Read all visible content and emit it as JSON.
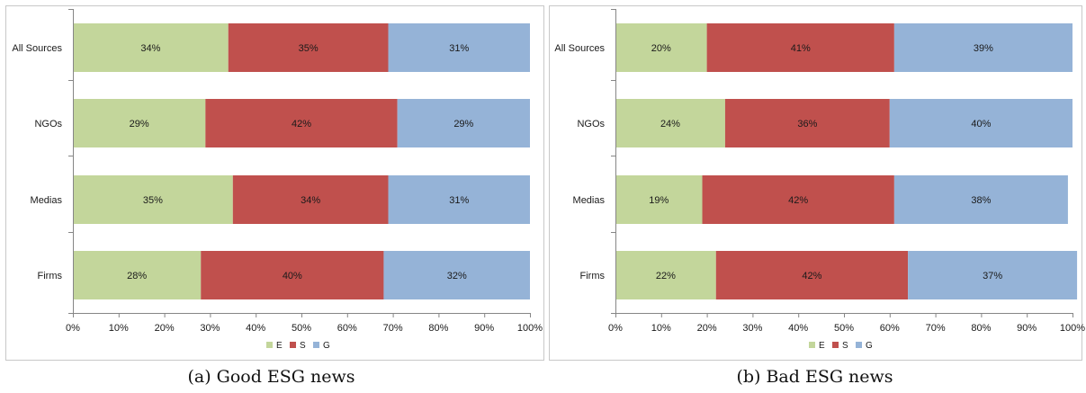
{
  "chart_data": [
    {
      "type": "bar",
      "orientation": "horizontal",
      "stacked": true,
      "categories": [
        "All Sources",
        "NGOs",
        "Medias",
        "Firms"
      ],
      "series": [
        {
          "name": "E",
          "values": [
            34,
            29,
            35,
            28
          ],
          "labels": [
            "34%",
            "29%",
            "35%",
            "28%"
          ],
          "color": "#c3d69b"
        },
        {
          "name": "S",
          "values": [
            35,
            42,
            34,
            40
          ],
          "labels": [
            "35%",
            "42%",
            "34%",
            "40%"
          ],
          "color": "#c0504d"
        },
        {
          "name": "G",
          "values": [
            31,
            29,
            31,
            32
          ],
          "labels": [
            "31%",
            "29%",
            "31%",
            "32%"
          ],
          "color": "#95b3d7"
        }
      ],
      "xticks": [
        "0%",
        "10%",
        "20%",
        "30%",
        "40%",
        "50%",
        "60%",
        "70%",
        "80%",
        "90%",
        "100%"
      ],
      "xlim": [
        0,
        100
      ],
      "grid": false,
      "legend": "bottom",
      "caption": "(a) Good ESG news"
    },
    {
      "type": "bar",
      "orientation": "horizontal",
      "stacked": true,
      "categories": [
        "All Sources",
        "NGOs",
        "Medias",
        "Firms"
      ],
      "series": [
        {
          "name": "E",
          "values": [
            20,
            24,
            19,
            22
          ],
          "labels": [
            "20%",
            "24%",
            "19%",
            "22%"
          ],
          "color": "#c3d69b"
        },
        {
          "name": "S",
          "values": [
            41,
            36,
            42,
            42
          ],
          "labels": [
            "41%",
            "36%",
            "42%",
            "42%"
          ],
          "color": "#c0504d"
        },
        {
          "name": "G",
          "values": [
            39,
            40,
            38,
            37
          ],
          "labels": [
            "39%",
            "40%",
            "38%",
            "37%"
          ],
          "color": "#95b3d7"
        }
      ],
      "xticks": [
        "0%",
        "10%",
        "20%",
        "30%",
        "40%",
        "50%",
        "60%",
        "70%",
        "80%",
        "90%",
        "100%"
      ],
      "xlim": [
        0,
        100
      ],
      "grid": false,
      "legend": "bottom",
      "caption": "(b) Bad ESG news"
    }
  ]
}
